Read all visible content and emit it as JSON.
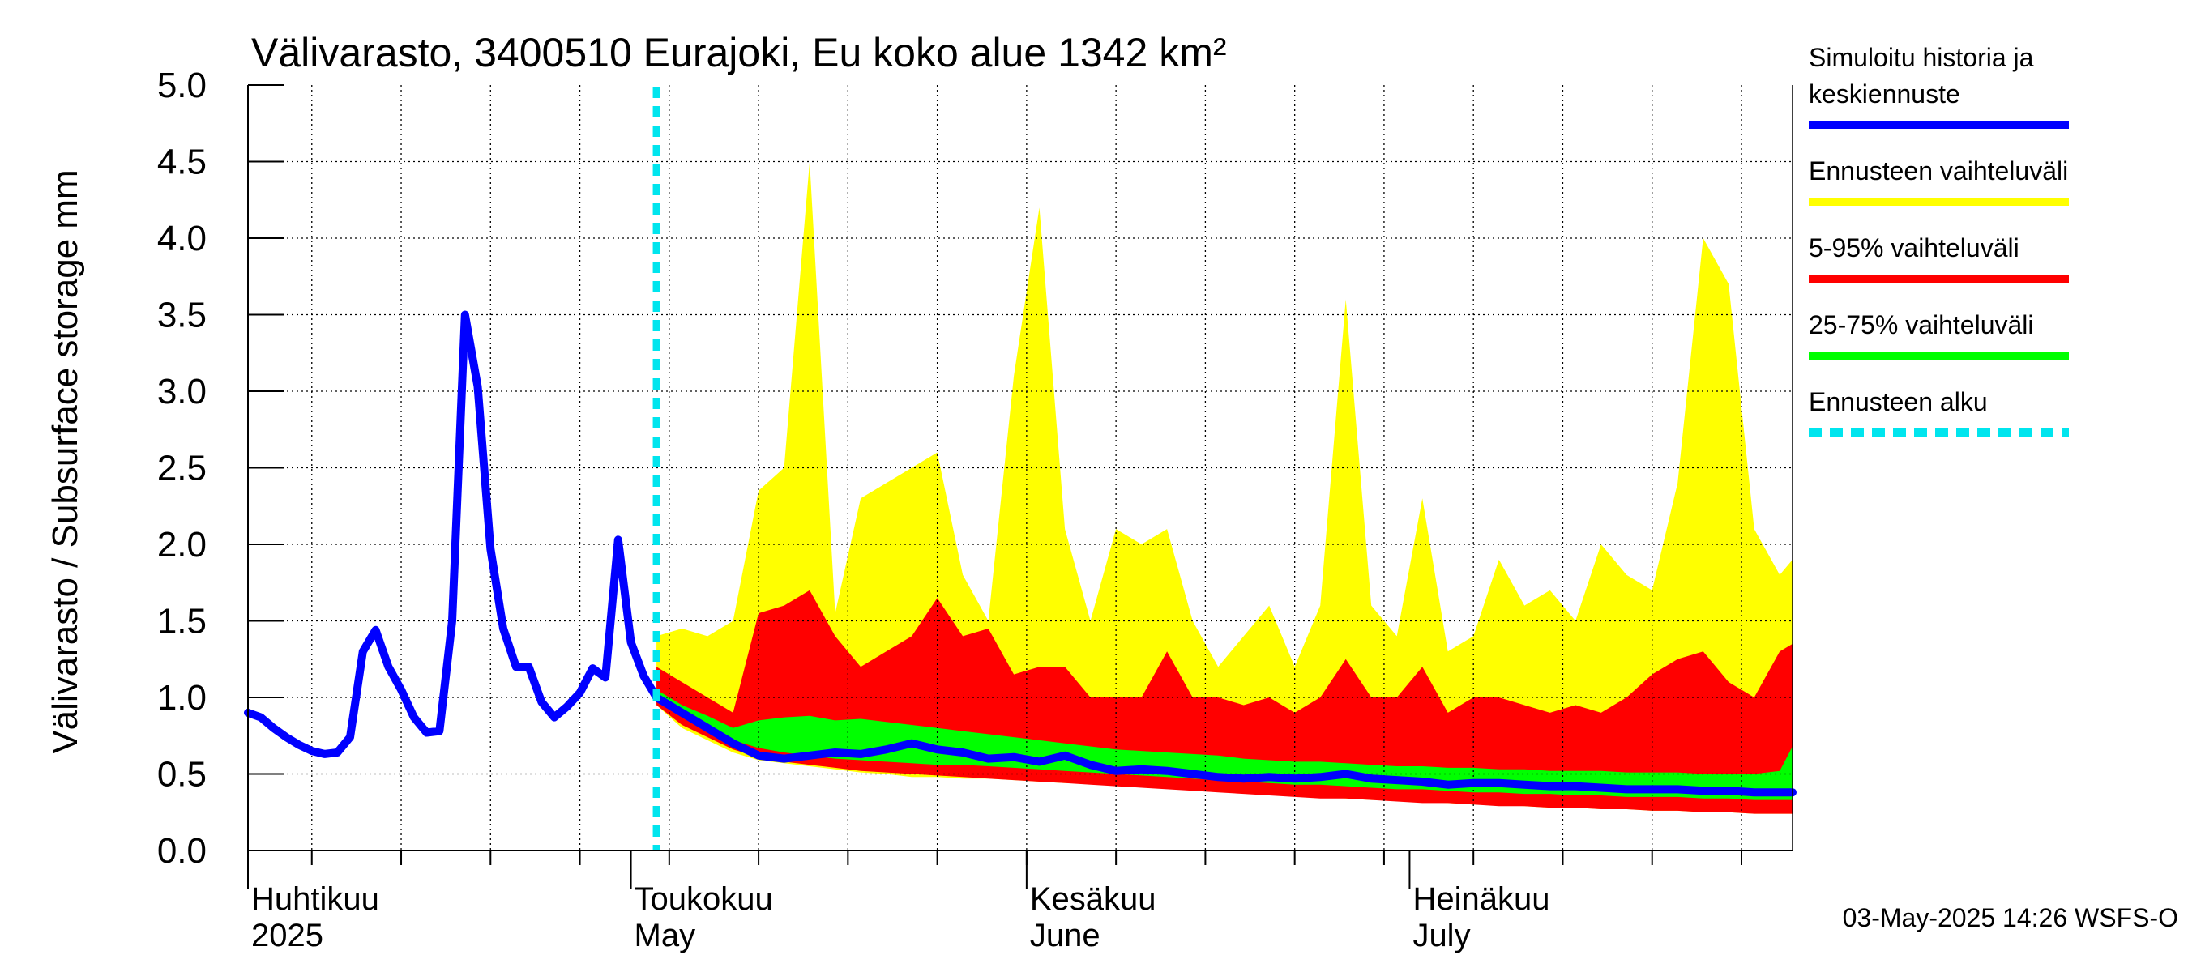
{
  "chart_data": {
    "type": "area",
    "title": "Välivarasto, 3400510 Eurajoki, Eu koko alue 1342 km²",
    "ylabel": "Välivarasto / Subsurface storage  mm",
    "ylim": [
      0.0,
      5.0
    ],
    "yticks": [
      "0.0",
      "0.5",
      "1.0",
      "1.5",
      "2.0",
      "2.5",
      "3.0",
      "3.5",
      "4.0",
      "4.5",
      "5.0"
    ],
    "xlim": [
      "2025-04-01",
      "2025-07-31"
    ],
    "grid": true,
    "months": [
      {
        "fi": "Huhtikuu",
        "en": "2025",
        "date": "2025-04-01"
      },
      {
        "fi": "Toukokuu",
        "en": "May",
        "date": "2025-05-01"
      },
      {
        "fi": "Kesäkuu",
        "en": "June",
        "date": "2025-06-01"
      },
      {
        "fi": "Heinäkuu",
        "en": "July",
        "date": "2025-07-01"
      }
    ],
    "forecast_start": "2025-05-03",
    "history": {
      "dates": [
        "2025-04-01",
        "2025-04-02",
        "2025-04-03",
        "2025-04-04",
        "2025-04-05",
        "2025-04-06",
        "2025-04-07",
        "2025-04-08",
        "2025-04-09",
        "2025-04-10",
        "2025-04-11",
        "2025-04-12",
        "2025-04-13",
        "2025-04-14",
        "2025-04-15",
        "2025-04-16",
        "2025-04-17",
        "2025-04-18",
        "2025-04-19",
        "2025-04-20",
        "2025-04-21",
        "2025-04-22",
        "2025-04-23",
        "2025-04-24",
        "2025-04-25",
        "2025-04-26",
        "2025-04-27",
        "2025-04-28",
        "2025-04-29",
        "2025-04-30",
        "2025-05-01",
        "2025-05-02",
        "2025-05-03"
      ],
      "values": [
        0.9,
        0.87,
        0.8,
        0.74,
        0.69,
        0.65,
        0.63,
        0.64,
        0.74,
        1.3,
        1.44,
        1.2,
        1.05,
        0.87,
        0.77,
        0.78,
        1.5,
        3.5,
        3.03,
        1.97,
        1.45,
        1.2,
        1.2,
        0.97,
        0.87,
        0.94,
        1.03,
        1.19,
        1.13,
        2.03,
        1.36,
        1.14,
        1.0
      ]
    },
    "forecast": {
      "dates": [
        "2025-05-03",
        "2025-05-05",
        "2025-05-07",
        "2025-05-09",
        "2025-05-11",
        "2025-05-13",
        "2025-05-15",
        "2025-05-17",
        "2025-05-19",
        "2025-05-21",
        "2025-05-23",
        "2025-05-25",
        "2025-05-27",
        "2025-05-29",
        "2025-05-31",
        "2025-06-02",
        "2025-06-04",
        "2025-06-06",
        "2025-06-08",
        "2025-06-10",
        "2025-06-12",
        "2025-06-14",
        "2025-06-16",
        "2025-06-18",
        "2025-06-20",
        "2025-06-22",
        "2025-06-24",
        "2025-06-26",
        "2025-06-28",
        "2025-06-30",
        "2025-07-02",
        "2025-07-04",
        "2025-07-06",
        "2025-07-08",
        "2025-07-10",
        "2025-07-12",
        "2025-07-14",
        "2025-07-16",
        "2025-07-18",
        "2025-07-20",
        "2025-07-22",
        "2025-07-24",
        "2025-07-26",
        "2025-07-28",
        "2025-07-30",
        "2025-07-31"
      ],
      "series": [
        {
          "name": "Ennusteen vaihteluväli",
          "color": "#ffff00",
          "low": [
            0.95,
            0.8,
            0.72,
            0.64,
            0.59,
            0.57,
            0.55,
            0.53,
            0.51,
            0.5,
            0.48,
            0.48,
            0.47,
            0.47,
            0.46,
            0.45,
            0.44,
            0.44,
            0.43,
            0.42,
            0.41,
            0.4,
            0.39,
            0.38,
            0.37,
            0.36,
            0.35,
            0.34,
            0.33,
            0.33,
            0.32,
            0.31,
            0.3,
            0.3,
            0.29,
            0.28,
            0.28,
            0.27,
            0.27,
            0.26,
            0.26,
            0.25,
            0.25,
            0.24,
            0.24,
            0.24
          ],
          "high": [
            1.4,
            1.45,
            1.4,
            1.5,
            2.35,
            2.5,
            4.5,
            1.55,
            2.3,
            2.4,
            2.5,
            2.6,
            1.8,
            1.5,
            3.1,
            4.2,
            2.1,
            1.5,
            2.1,
            2.0,
            2.1,
            1.5,
            1.2,
            1.4,
            1.6,
            1.2,
            1.6,
            3.6,
            1.6,
            1.4,
            2.3,
            1.3,
            1.4,
            1.9,
            1.6,
            1.7,
            1.5,
            2.0,
            1.8,
            1.7,
            2.4,
            4.0,
            3.7,
            2.1,
            1.8,
            1.9
          ]
        },
        {
          "name": "5-95% vaihteluväli",
          "color": "#ff0000",
          "low": [
            0.95,
            0.82,
            0.74,
            0.66,
            0.61,
            0.58,
            0.56,
            0.54,
            0.52,
            0.51,
            0.5,
            0.49,
            0.48,
            0.47,
            0.46,
            0.45,
            0.44,
            0.43,
            0.42,
            0.41,
            0.4,
            0.39,
            0.38,
            0.37,
            0.36,
            0.35,
            0.34,
            0.34,
            0.33,
            0.32,
            0.31,
            0.31,
            0.3,
            0.29,
            0.29,
            0.28,
            0.28,
            0.27,
            0.27,
            0.26,
            0.26,
            0.25,
            0.25,
            0.24,
            0.24,
            0.24
          ],
          "high": [
            1.2,
            1.1,
            1.0,
            0.9,
            1.55,
            1.6,
            1.7,
            1.4,
            1.2,
            1.3,
            1.4,
            1.65,
            1.4,
            1.45,
            1.15,
            1.2,
            1.2,
            1.0,
            1.0,
            1.0,
            1.3,
            1.0,
            1.0,
            0.95,
            1.0,
            0.9,
            1.0,
            1.25,
            1.0,
            1.0,
            1.2,
            0.9,
            1.0,
            1.0,
            0.95,
            0.9,
            0.95,
            0.9,
            1.0,
            1.15,
            1.25,
            1.3,
            1.1,
            1.0,
            1.3,
            1.35
          ]
        },
        {
          "name": "25-75% vaihteluväli",
          "color": "#00ff00",
          "low": [
            1.0,
            0.88,
            0.8,
            0.72,
            0.67,
            0.64,
            0.62,
            0.6,
            0.59,
            0.58,
            0.57,
            0.56,
            0.56,
            0.55,
            0.54,
            0.53,
            0.52,
            0.51,
            0.5,
            0.49,
            0.48,
            0.47,
            0.46,
            0.45,
            0.44,
            0.43,
            0.43,
            0.42,
            0.41,
            0.4,
            0.4,
            0.39,
            0.38,
            0.38,
            0.37,
            0.37,
            0.36,
            0.36,
            0.35,
            0.35,
            0.35,
            0.34,
            0.34,
            0.33,
            0.33,
            0.33
          ],
          "high": [
            1.05,
            0.95,
            0.88,
            0.8,
            0.85,
            0.87,
            0.88,
            0.85,
            0.86,
            0.84,
            0.82,
            0.8,
            0.78,
            0.76,
            0.74,
            0.72,
            0.7,
            0.68,
            0.66,
            0.65,
            0.64,
            0.63,
            0.62,
            0.6,
            0.59,
            0.58,
            0.58,
            0.57,
            0.56,
            0.55,
            0.55,
            0.54,
            0.54,
            0.53,
            0.53,
            0.52,
            0.52,
            0.52,
            0.51,
            0.51,
            0.51,
            0.5,
            0.5,
            0.5,
            0.52,
            0.68
          ]
        },
        {
          "name": "Simuloitu historia ja keskiennuste",
          "color": "#0000ff",
          "values": [
            1.0,
            0.9,
            0.8,
            0.7,
            0.62,
            0.6,
            0.62,
            0.64,
            0.63,
            0.66,
            0.7,
            0.66,
            0.64,
            0.6,
            0.61,
            0.58,
            0.62,
            0.56,
            0.52,
            0.53,
            0.52,
            0.5,
            0.48,
            0.47,
            0.48,
            0.47,
            0.48,
            0.5,
            0.47,
            0.46,
            0.45,
            0.43,
            0.44,
            0.44,
            0.43,
            0.42,
            0.42,
            0.41,
            0.4,
            0.4,
            0.4,
            0.39,
            0.39,
            0.38,
            0.38,
            0.38
          ]
        }
      ]
    },
    "legend": {
      "position": "right",
      "items": [
        {
          "label_lines": [
            "Simuloitu historia ja",
            "keskiennuste"
          ],
          "color": "#0000ff",
          "style": "solid"
        },
        {
          "label_lines": [
            "Ennusteen vaihteluväli"
          ],
          "color": "#ffff00",
          "style": "solid"
        },
        {
          "label_lines": [
            "5-95% vaihteluväli"
          ],
          "color": "#ff0000",
          "style": "solid"
        },
        {
          "label_lines": [
            "25-75% vaihteluväli"
          ],
          "color": "#00ff00",
          "style": "solid"
        },
        {
          "label_lines": [
            "Ennusteen alku"
          ],
          "color": "#00e5ee",
          "style": "dashed"
        }
      ]
    },
    "footer": "03-May-2025 14:26 WSFS-O"
  }
}
